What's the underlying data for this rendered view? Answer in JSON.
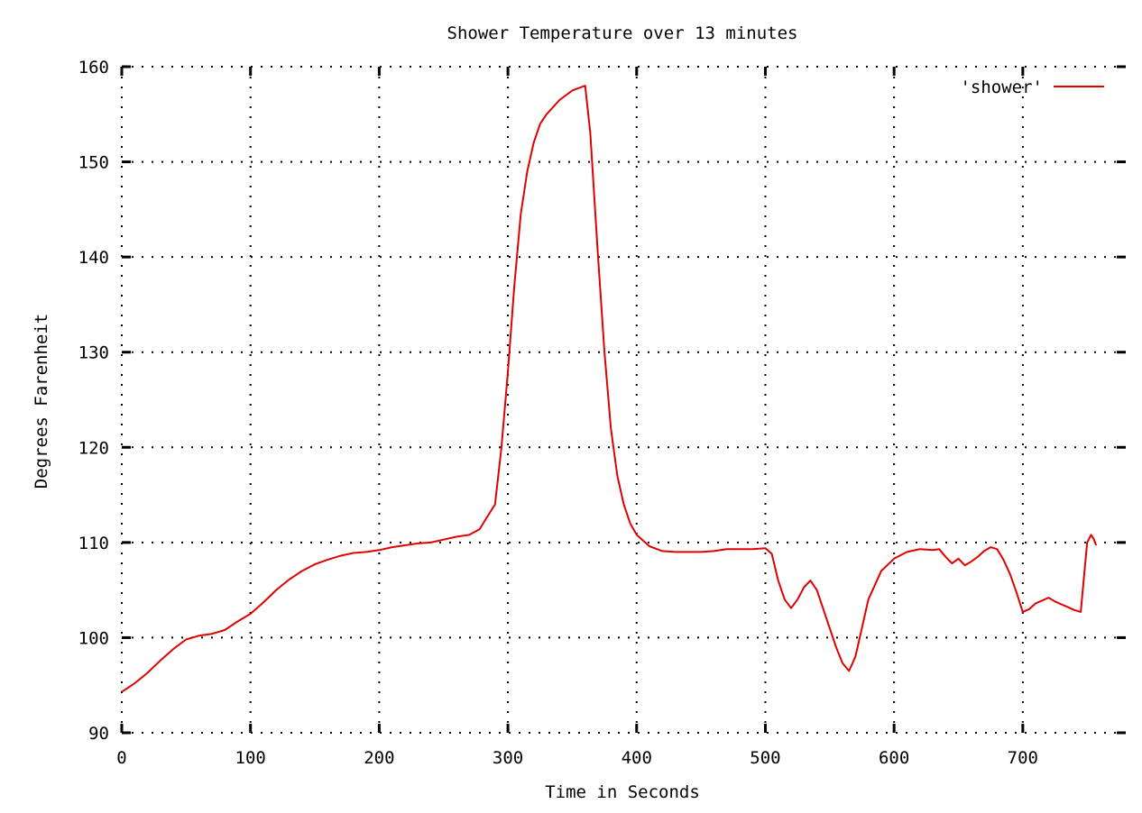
{
  "chart_data": {
    "type": "line",
    "title": "Shower Temperature over 13 minutes",
    "xlabel": "Time in Seconds",
    "ylabel": "Degrees Farenheit",
    "xlim": [
      0,
      780
    ],
    "ylim": [
      90,
      160
    ],
    "xticks": [
      0,
      100,
      200,
      300,
      400,
      500,
      600,
      700
    ],
    "yticks": [
      90,
      100,
      110,
      120,
      130,
      140,
      150,
      160
    ],
    "grid": true,
    "legend_position": "top-right",
    "series": [
      {
        "name": "'shower'",
        "color": "#e00000",
        "x": [
          0,
          10,
          20,
          30,
          40,
          50,
          60,
          70,
          80,
          90,
          100,
          110,
          120,
          130,
          140,
          150,
          160,
          170,
          180,
          190,
          200,
          210,
          220,
          230,
          240,
          250,
          260,
          270,
          278,
          283,
          290,
          295,
          300,
          305,
          310,
          315,
          320,
          325,
          330,
          340,
          350,
          360,
          364,
          370,
          375,
          380,
          385,
          390,
          395,
          400,
          410,
          420,
          430,
          440,
          450,
          460,
          470,
          480,
          490,
          500,
          505,
          510,
          515,
          520,
          525,
          530,
          535,
          540,
          545,
          550,
          555,
          560,
          565,
          570,
          575,
          580,
          590,
          600,
          610,
          620,
          630,
          635,
          640,
          645,
          650,
          655,
          660,
          665,
          670,
          675,
          680,
          685,
          690,
          695,
          700,
          705,
          710,
          715,
          720,
          725,
          730,
          735,
          740,
          745,
          750,
          753,
          755,
          757
        ],
        "y": [
          94.3,
          95.2,
          96.3,
          97.6,
          98.8,
          99.8,
          100.2,
          100.4,
          100.8,
          101.7,
          102.5,
          103.7,
          105.0,
          106.1,
          107.0,
          107.7,
          108.2,
          108.6,
          108.9,
          109.0,
          109.2,
          109.5,
          109.7,
          109.9,
          110.0,
          110.3,
          110.6,
          110.8,
          111.4,
          112.5,
          114.0,
          120.0,
          128.0,
          137.0,
          144.5,
          149.0,
          152.0,
          154.0,
          155.0,
          156.5,
          157.5,
          158.0,
          153.0,
          140.0,
          130.0,
          122.0,
          117.0,
          114.0,
          112.0,
          110.8,
          109.6,
          109.1,
          109.0,
          109.0,
          109.0,
          109.1,
          109.3,
          109.3,
          109.3,
          109.4,
          108.8,
          106.0,
          104.0,
          103.1,
          104.0,
          105.3,
          106.0,
          105.0,
          103.0,
          101.0,
          99.0,
          97.3,
          96.5,
          98.0,
          101.0,
          104.0,
          107.0,
          108.3,
          109.0,
          109.3,
          109.2,
          109.3,
          108.5,
          107.8,
          108.3,
          107.6,
          108.0,
          108.5,
          109.1,
          109.5,
          109.3,
          108.2,
          106.7,
          104.8,
          102.7,
          103.0,
          103.6,
          103.9,
          104.2,
          103.8,
          103.5,
          103.2,
          102.9,
          102.7,
          110.0,
          110.8,
          110.4,
          109.7
        ]
      }
    ]
  }
}
